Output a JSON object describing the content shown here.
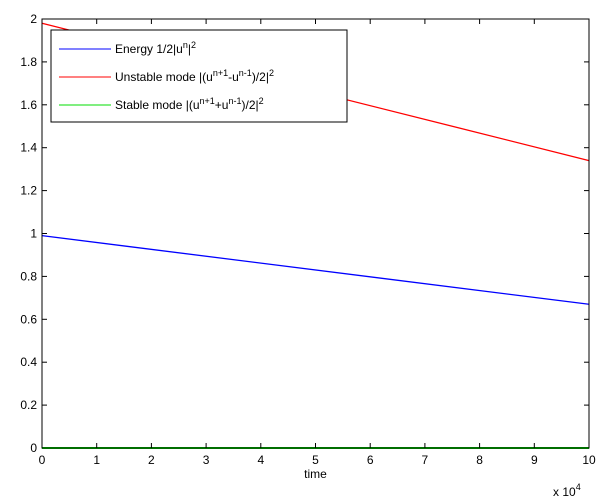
{
  "chart_data": {
    "type": "line",
    "xlabel": "time",
    "x_multiplier": "x 10",
    "x_multiplier_exp": "4",
    "xlim": [
      0,
      10
    ],
    "ylim": [
      0,
      2
    ],
    "x_ticks": [
      "0",
      "1",
      "2",
      "3",
      "4",
      "5",
      "6",
      "7",
      "8",
      "9",
      "10"
    ],
    "y_ticks": [
      "0",
      "0.2",
      "0.4",
      "0.6",
      "0.8",
      "1",
      "1.2",
      "1.4",
      "1.6",
      "1.8",
      "2"
    ],
    "grid": false,
    "legend_position": "top-left",
    "series": [
      {
        "name": "Energy 1/2|u^n|^2",
        "legend": {
          "base": "Energy 1/2|u",
          "sup1": "n",
          "mid": "|",
          "sup2": "2"
        },
        "color": "#0000ff",
        "x": [
          0,
          10
        ],
        "y": [
          0.99,
          0.67
        ]
      },
      {
        "name": "Unstable mode |(u^{n+1}-u^{n-1})/2|^2",
        "legend": {
          "p1": "Unstable mode |(u",
          "s1": "n+1",
          "p2": "-u",
          "s2": "n-1",
          "p3": ")/2|",
          "s3": "2"
        },
        "color": "#ff0000",
        "x": [
          0,
          10
        ],
        "y": [
          1.98,
          1.34
        ]
      },
      {
        "name": "Stable mode |(u^{n+1}+u^{n-1})/2|^2",
        "legend": {
          "p1": "Stable mode |(u",
          "s1": "n+1",
          "p2": "+u",
          "s2": "n-1",
          "p3": ")/2|",
          "s3": "2"
        },
        "color": "#00dd00",
        "x": [
          0,
          10
        ],
        "y": [
          0,
          0
        ]
      }
    ]
  }
}
